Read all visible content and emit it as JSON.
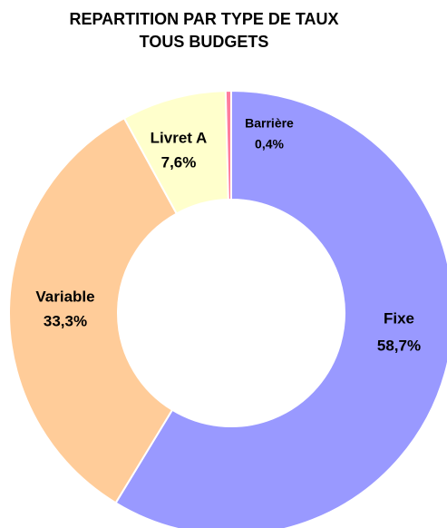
{
  "chart_data": {
    "type": "donut",
    "title": "REPARTITION PAR TYPE DE TAUX",
    "subtitle": "TOUS BUDGETS",
    "categories": [
      "Fixe",
      "Variable",
      "Livret A",
      "Barrière"
    ],
    "values": [
      58.7,
      33.3,
      7.6,
      0.4
    ],
    "value_labels": [
      "58,7%",
      "33,3%",
      "7,6%",
      "0,4%"
    ],
    "colors": [
      "#9999ff",
      "#ffcc99",
      "#ffffcc",
      "#ff7c9c"
    ]
  }
}
